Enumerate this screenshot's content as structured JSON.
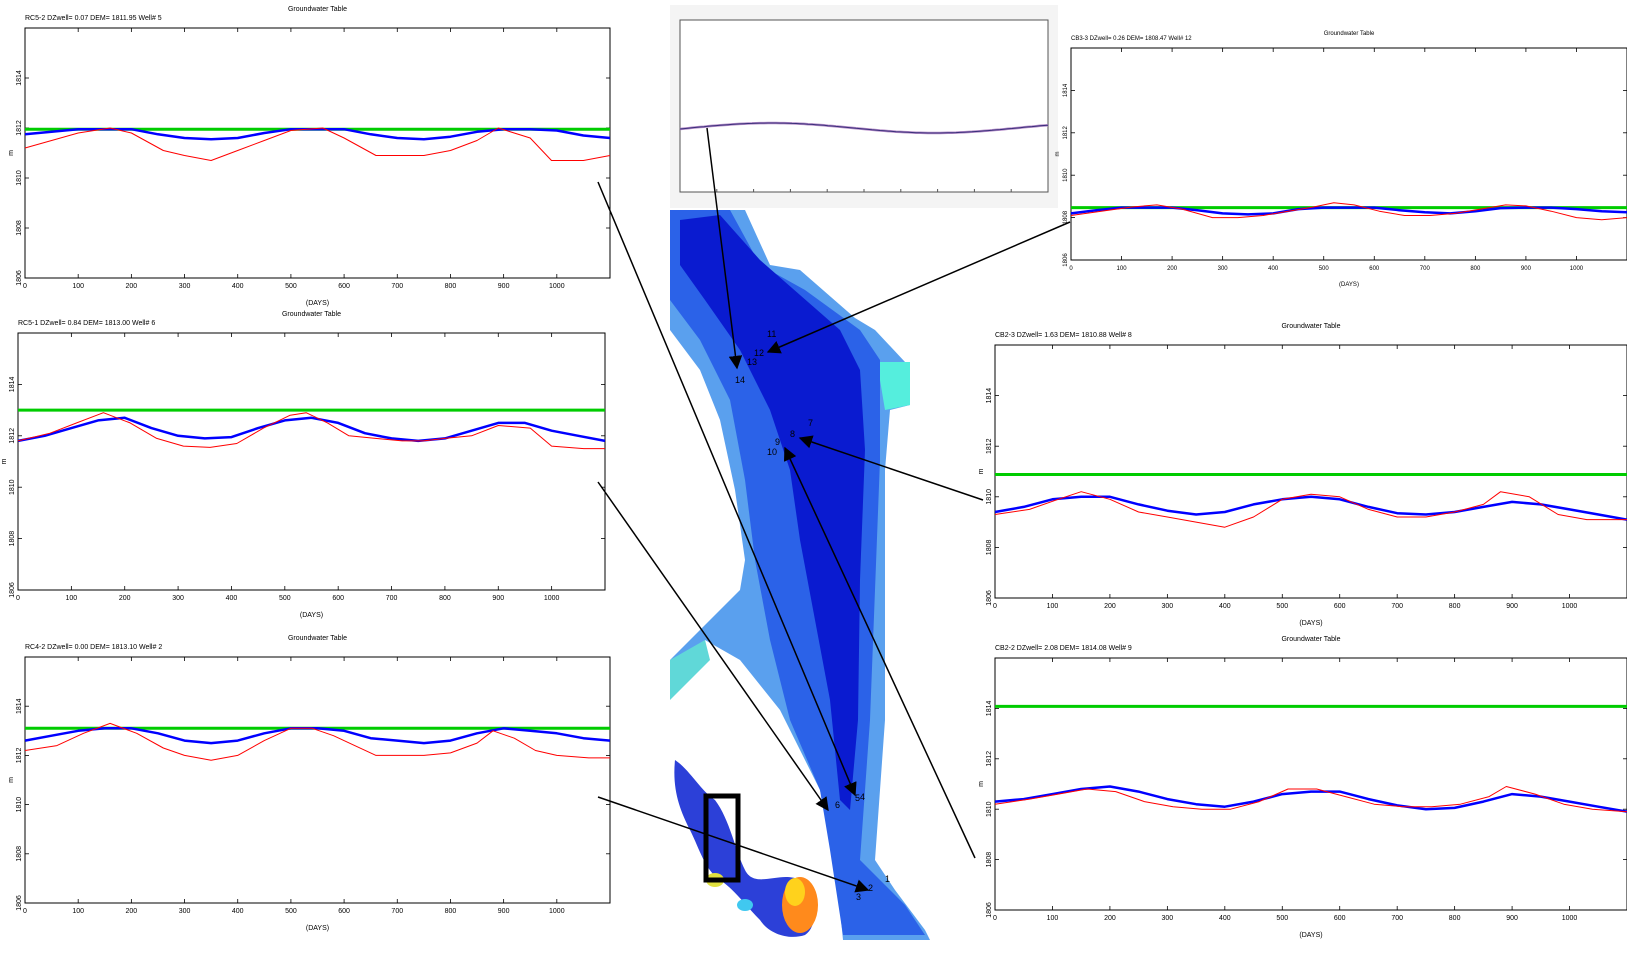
{
  "chart_data": [
    {
      "type": "line",
      "title": "Groundwater Table",
      "header": "RC5-2 DZwell=      0.07 DEM=      1811.95 Well# 5",
      "xlabel": "(DAYS)",
      "ylabel": "m",
      "xlim": [
        0,
        1100
      ],
      "ylim": [
        1806,
        1816
      ],
      "x_ticks": [
        0,
        100,
        200,
        300,
        400,
        500,
        600,
        700,
        800,
        900,
        1000
      ],
      "y_ticks": [
        1806,
        1808,
        1810,
        1812,
        1814
      ],
      "grid": false,
      "series": [
        {
          "color": "#00cc00",
          "x": [
            0,
            1100
          ],
          "values": [
            1811.95,
            1811.95
          ]
        },
        {
          "color": "#0000ff",
          "x": [
            0,
            50,
            100,
            150,
            200,
            250,
            300,
            350,
            400,
            450,
            500,
            550,
            600,
            650,
            700,
            750,
            800,
            850,
            900,
            950,
            1000,
            1050,
            1100
          ],
          "values": [
            1811.75,
            1811.85,
            1811.95,
            1811.95,
            1811.95,
            1811.75,
            1811.6,
            1811.55,
            1811.6,
            1811.8,
            1811.95,
            1811.95,
            1811.95,
            1811.75,
            1811.6,
            1811.55,
            1811.65,
            1811.85,
            1811.95,
            1811.95,
            1811.9,
            1811.7,
            1811.6
          ]
        },
        {
          "color": "#ff0000",
          "x": [
            0,
            50,
            100,
            160,
            200,
            260,
            300,
            350,
            400,
            450,
            500,
            560,
            600,
            660,
            700,
            750,
            800,
            850,
            890,
            950,
            990,
            1050,
            1100
          ],
          "values": [
            1811.2,
            1811.5,
            1811.8,
            1812.0,
            1811.8,
            1811.1,
            1810.9,
            1810.7,
            1811.1,
            1811.5,
            1811.9,
            1812.0,
            1811.6,
            1810.9,
            1810.9,
            1810.9,
            1811.1,
            1811.5,
            1812.0,
            1811.6,
            1810.7,
            1810.7,
            1810.9
          ]
        }
      ]
    },
    {
      "type": "line",
      "title": "Groundwater Table",
      "header": "RC5-1 DZwell=      0.84 DEM=      1813.00 Well# 6",
      "xlabel": "(DAYS)",
      "ylabel": "m",
      "xlim": [
        0,
        1100
      ],
      "ylim": [
        1806,
        1816
      ],
      "x_ticks": [
        0,
        100,
        200,
        300,
        400,
        500,
        600,
        700,
        800,
        900,
        1000
      ],
      "y_ticks": [
        1806,
        1808,
        1810,
        1812,
        1814
      ],
      "grid": false,
      "series": [
        {
          "color": "#00cc00",
          "x": [
            0,
            1100
          ],
          "values": [
            1813.0,
            1813.0
          ]
        },
        {
          "color": "#0000ff",
          "x": [
            0,
            50,
            100,
            150,
            200,
            250,
            300,
            350,
            400,
            450,
            500,
            550,
            600,
            650,
            700,
            750,
            800,
            850,
            900,
            950,
            1000,
            1050,
            1100
          ],
          "values": [
            1811.8,
            1812.0,
            1812.3,
            1812.6,
            1812.7,
            1812.3,
            1812.0,
            1811.9,
            1811.95,
            1812.3,
            1812.6,
            1812.7,
            1812.5,
            1812.1,
            1811.9,
            1811.8,
            1811.9,
            1812.2,
            1812.5,
            1812.5,
            1812.2,
            1812.0,
            1811.8
          ]
        },
        {
          "color": "#ff0000",
          "x": [
            0,
            60,
            110,
            160,
            210,
            260,
            310,
            360,
            410,
            460,
            510,
            540,
            580,
            620,
            670,
            720,
            760,
            800,
            850,
            900,
            960,
            1000,
            1060,
            1100
          ],
          "values": [
            1811.8,
            1812.1,
            1812.5,
            1812.9,
            1812.5,
            1811.9,
            1811.6,
            1811.55,
            1811.7,
            1812.3,
            1812.8,
            1812.9,
            1812.5,
            1812.0,
            1811.9,
            1811.8,
            1811.8,
            1811.9,
            1812.0,
            1812.4,
            1812.3,
            1811.6,
            1811.5,
            1811.5
          ]
        }
      ]
    },
    {
      "type": "line",
      "title": "Groundwater Table",
      "header": "RC4-2 DZwell=      0.00 DEM=      1813.10 Well# 2",
      "xlabel": "(DAYS)",
      "ylabel": "m",
      "xlim": [
        0,
        1100
      ],
      "ylim": [
        1806,
        1816
      ],
      "x_ticks": [
        0,
        100,
        200,
        300,
        400,
        500,
        600,
        700,
        800,
        900,
        1000
      ],
      "y_ticks": [
        1806,
        1808,
        1810,
        1812,
        1814
      ],
      "grid": false,
      "series": [
        {
          "color": "#00cc00",
          "x": [
            0,
            1100
          ],
          "values": [
            1813.1,
            1813.1
          ]
        },
        {
          "color": "#0000ff",
          "x": [
            0,
            50,
            100,
            150,
            200,
            250,
            300,
            350,
            400,
            450,
            500,
            550,
            600,
            650,
            700,
            750,
            800,
            850,
            900,
            950,
            1000,
            1050,
            1100
          ],
          "values": [
            1812.6,
            1812.8,
            1813.0,
            1813.1,
            1813.1,
            1812.9,
            1812.6,
            1812.5,
            1812.6,
            1812.9,
            1813.1,
            1813.1,
            1813.0,
            1812.7,
            1812.6,
            1812.5,
            1812.6,
            1812.9,
            1813.1,
            1813.0,
            1812.9,
            1812.7,
            1812.6
          ]
        },
        {
          "color": "#ff0000",
          "x": [
            0,
            60,
            110,
            160,
            210,
            260,
            300,
            350,
            400,
            450,
            500,
            540,
            580,
            620,
            660,
            700,
            750,
            800,
            850,
            880,
            920,
            960,
            1000,
            1060,
            1100
          ],
          "values": [
            1812.2,
            1812.4,
            1812.9,
            1813.3,
            1812.9,
            1812.3,
            1812.0,
            1811.8,
            1812.0,
            1812.6,
            1813.1,
            1813.1,
            1812.8,
            1812.4,
            1812.0,
            1812.0,
            1812.0,
            1812.1,
            1812.5,
            1813.0,
            1812.7,
            1812.2,
            1812.0,
            1811.9,
            1811.9
          ]
        }
      ]
    },
    {
      "type": "line",
      "title": "Groundwater Table",
      "header": "CB3-3 DZwell=      0.26 DEM=      1808.47 Well# 12",
      "xlabel": "(DAYS)",
      "ylabel": "m",
      "xlim": [
        0,
        1100
      ],
      "ylim": [
        1806,
        1816
      ],
      "x_ticks": [
        0,
        100,
        200,
        300,
        400,
        500,
        600,
        700,
        800,
        900,
        1000
      ],
      "y_ticks": [
        1806,
        1808,
        1810,
        1812,
        1814
      ],
      "grid": false,
      "series": [
        {
          "color": "#00cc00",
          "x": [
            0,
            1100
          ],
          "values": [
            1808.47,
            1808.47
          ]
        },
        {
          "color": "#0000ff",
          "x": [
            0,
            50,
            100,
            150,
            200,
            250,
            300,
            350,
            400,
            450,
            500,
            550,
            600,
            650,
            700,
            750,
            800,
            850,
            900,
            950,
            1000,
            1050,
            1100
          ],
          "values": [
            1808.2,
            1808.35,
            1808.47,
            1808.47,
            1808.47,
            1808.35,
            1808.2,
            1808.15,
            1808.2,
            1808.4,
            1808.47,
            1808.47,
            1808.47,
            1808.35,
            1808.25,
            1808.2,
            1808.3,
            1808.45,
            1808.47,
            1808.47,
            1808.4,
            1808.3,
            1808.25
          ]
        },
        {
          "color": "#ff0000",
          "x": [
            0,
            60,
            120,
            170,
            220,
            280,
            330,
            380,
            430,
            480,
            520,
            560,
            610,
            660,
            710,
            760,
            810,
            860,
            900,
            950,
            1000,
            1050,
            1100
          ],
          "values": [
            1808.1,
            1808.3,
            1808.5,
            1808.6,
            1808.4,
            1808.0,
            1808.0,
            1808.1,
            1808.3,
            1808.5,
            1808.7,
            1808.6,
            1808.3,
            1808.1,
            1808.1,
            1808.2,
            1808.4,
            1808.6,
            1808.55,
            1808.3,
            1808.0,
            1807.9,
            1808.0
          ]
        }
      ]
    },
    {
      "type": "line",
      "title": "Groundwater Table",
      "header": "CB2-3 DZwell=      1.63 DEM=      1810.88 Well# 8",
      "xlabel": "(DAYS)",
      "ylabel": "m",
      "xlim": [
        0,
        1100
      ],
      "ylim": [
        1806,
        1816
      ],
      "x_ticks": [
        0,
        100,
        200,
        300,
        400,
        500,
        600,
        700,
        800,
        900,
        1000
      ],
      "y_ticks": [
        1806,
        1808,
        1810,
        1812,
        1814
      ],
      "grid": false,
      "series": [
        {
          "color": "#00cc00",
          "x": [
            0,
            1100
          ],
          "values": [
            1810.88,
            1810.88
          ]
        },
        {
          "color": "#0000ff",
          "x": [
            0,
            50,
            100,
            150,
            200,
            250,
            300,
            350,
            400,
            450,
            500,
            550,
            600,
            650,
            700,
            750,
            800,
            850,
            900,
            950,
            1000,
            1050,
            1100
          ],
          "values": [
            1809.4,
            1809.6,
            1809.9,
            1810.0,
            1810.0,
            1809.7,
            1809.45,
            1809.3,
            1809.4,
            1809.7,
            1809.9,
            1810.0,
            1809.9,
            1809.6,
            1809.35,
            1809.3,
            1809.4,
            1809.6,
            1809.8,
            1809.7,
            1809.5,
            1809.3,
            1809.1
          ]
        },
        {
          "color": "#ff0000",
          "x": [
            0,
            60,
            110,
            150,
            200,
            250,
            300,
            350,
            400,
            450,
            500,
            550,
            600,
            650,
            700,
            750,
            800,
            850,
            880,
            930,
            980,
            1030,
            1100
          ],
          "values": [
            1809.3,
            1809.5,
            1809.9,
            1810.2,
            1809.9,
            1809.4,
            1809.2,
            1809.0,
            1808.8,
            1809.2,
            1809.9,
            1810.1,
            1810.0,
            1809.5,
            1809.2,
            1809.2,
            1809.4,
            1809.7,
            1810.2,
            1810.0,
            1809.3,
            1809.1,
            1809.1
          ]
        }
      ]
    },
    {
      "type": "line",
      "title": "Groundwater Table",
      "header": "CB2-2 DZwell=      2.08 DEM=      1814.08 Well# 9",
      "xlabel": "(DAYS)",
      "ylabel": "m",
      "xlim": [
        0,
        1100
      ],
      "ylim": [
        1806,
        1816
      ],
      "x_ticks": [
        0,
        100,
        200,
        300,
        400,
        500,
        600,
        700,
        800,
        900,
        1000
      ],
      "y_ticks": [
        1806,
        1808,
        1810,
        1812,
        1814
      ],
      "grid": false,
      "series": [
        {
          "color": "#00cc00",
          "x": [
            0,
            1100
          ],
          "values": [
            1814.08,
            1814.08
          ]
        },
        {
          "color": "#0000ff",
          "x": [
            0,
            50,
            100,
            150,
            200,
            250,
            300,
            350,
            400,
            450,
            500,
            550,
            600,
            650,
            700,
            750,
            800,
            850,
            900,
            950,
            1000,
            1050,
            1100
          ],
          "values": [
            1810.3,
            1810.4,
            1810.6,
            1810.8,
            1810.9,
            1810.7,
            1810.4,
            1810.2,
            1810.1,
            1810.3,
            1810.6,
            1810.7,
            1810.7,
            1810.4,
            1810.15,
            1810.0,
            1810.05,
            1810.3,
            1810.6,
            1810.5,
            1810.3,
            1810.1,
            1809.9
          ]
        },
        {
          "color": "#ff0000",
          "x": [
            0,
            60,
            110,
            160,
            210,
            260,
            310,
            360,
            410,
            460,
            510,
            560,
            610,
            660,
            710,
            760,
            810,
            860,
            890,
            940,
            990,
            1040,
            1100
          ],
          "values": [
            1810.2,
            1810.4,
            1810.6,
            1810.8,
            1810.7,
            1810.3,
            1810.1,
            1810.0,
            1810.0,
            1810.3,
            1810.8,
            1810.8,
            1810.5,
            1810.2,
            1810.1,
            1810.1,
            1810.2,
            1810.5,
            1810.9,
            1810.6,
            1810.2,
            1810.0,
            1809.9
          ]
        }
      ]
    }
  ],
  "map": {
    "well_numbers": [
      "1",
      "2",
      "3",
      "4",
      "5",
      "6",
      "7",
      "8",
      "9",
      "10",
      "11",
      "12",
      "13",
      "14"
    ]
  }
}
